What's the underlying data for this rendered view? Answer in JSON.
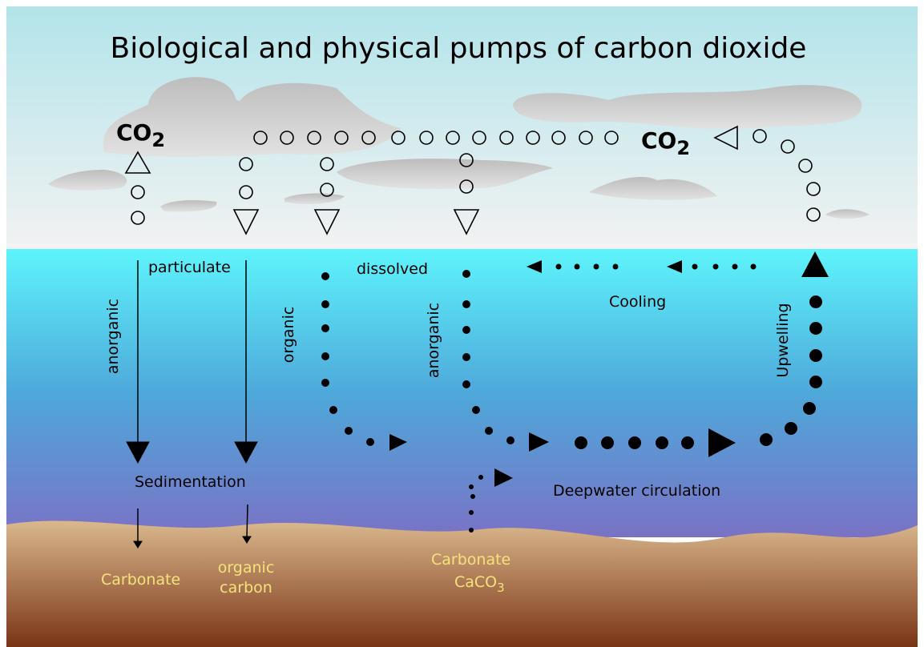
{
  "title": "Biological and physical pumps of carbon dioxide",
  "atmosphere": {
    "co2_left": {
      "main": "CO",
      "sub": "2"
    },
    "co2_right": {
      "main": "CO",
      "sub": "2"
    }
  },
  "ocean": {
    "particulate": "particulate",
    "dissolved": "dissolved",
    "anorganic_left": "anorganic",
    "organic": "organic",
    "anorganic_right": "anorganic",
    "cooling": "Cooling",
    "upwelling": "Upwelling",
    "sedimentation": "Sedimentation",
    "deepwater": "Deepwater circulation"
  },
  "seabed": {
    "carbonate": "Carbonate",
    "organic_carbon": [
      "organic",
      "carbon"
    ],
    "carbonate_caco3": {
      "line1": "Carbonate",
      "main": "CaCO",
      "sub": "3"
    }
  }
}
